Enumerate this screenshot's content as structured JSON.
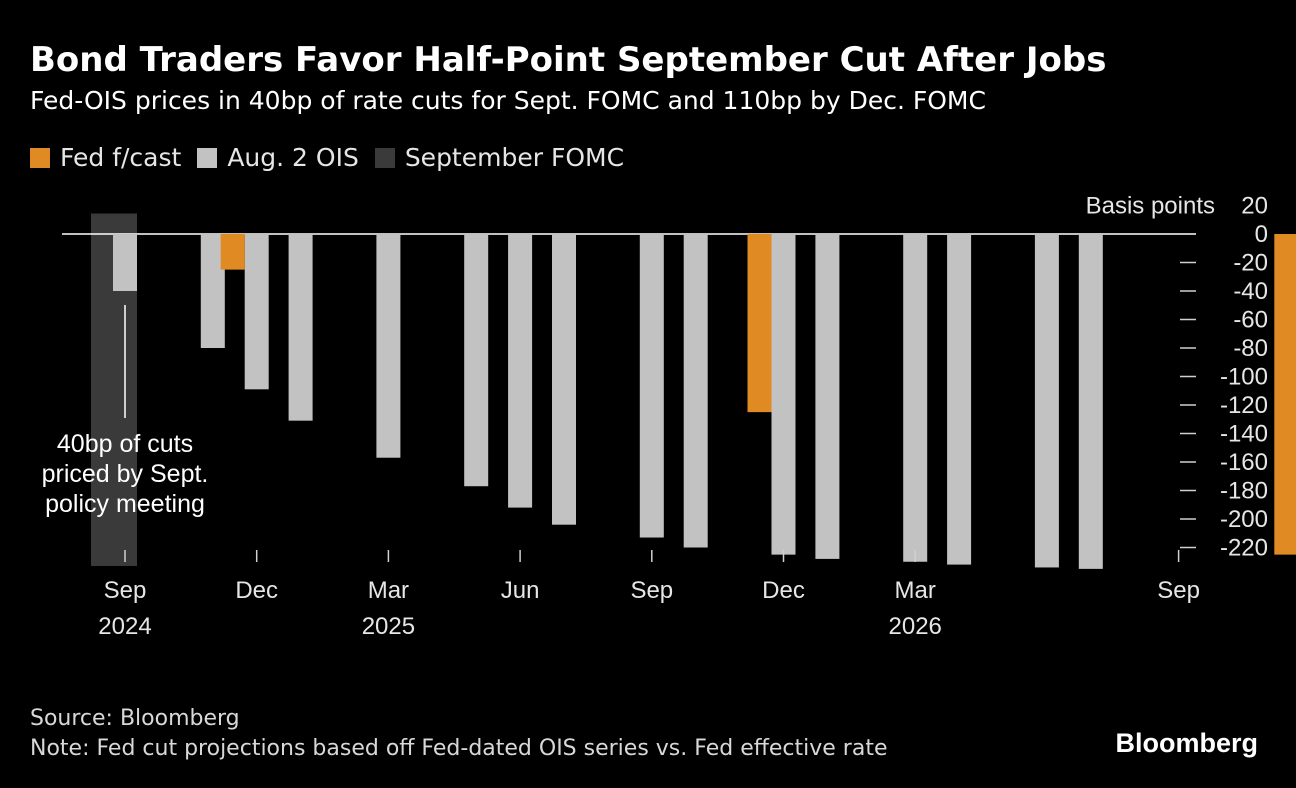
{
  "header": {
    "title": "Bond Traders Favor Half-Point September Cut After Jobs",
    "subtitle": "Fed-OIS prices in 40bp of rate cuts for Sept. FOMC and 110bp by Dec. FOMC"
  },
  "legend": [
    {
      "label": "Fed f/cast",
      "color": "#e08a24"
    },
    {
      "label": "Aug. 2 OIS",
      "color": "#c2c2c2"
    },
    {
      "label": "September FOMC",
      "color": "#3a3a3a"
    }
  ],
  "footer": {
    "source": "Source: Bloomberg",
    "note": "Note: Fed cut projections based off Fed-dated OIS series vs. Fed effective rate",
    "brand": "Bloomberg"
  },
  "chart_data": {
    "type": "bar",
    "yaxis_label": "Basis points",
    "y_ticks": [
      20,
      0,
      -20,
      -40,
      -60,
      -80,
      -100,
      -120,
      -140,
      -160,
      -180,
      -200,
      -220
    ],
    "ylim": [
      -240,
      20
    ],
    "x_ticks": [
      {
        "label": "Sep",
        "year": "2024",
        "date": "2024-09"
      },
      {
        "label": "Dec",
        "year": "",
        "date": "2024-12"
      },
      {
        "label": "Mar",
        "year": "2025",
        "date": "2025-03"
      },
      {
        "label": "Jun",
        "year": "",
        "date": "2025-06"
      },
      {
        "label": "Sep",
        "year": "",
        "date": "2025-09"
      },
      {
        "label": "Dec",
        "year": "",
        "date": "2025-12"
      },
      {
        "label": "Mar",
        "year": "2026",
        "date": "2026-03"
      },
      {
        "label": "Sep",
        "year": "",
        "date": "2026-09"
      }
    ],
    "series": [
      {
        "name": "Aug. 2 OIS",
        "color": "#c2c2c2",
        "points": [
          {
            "date": "2024-09",
            "value": -40
          },
          {
            "date": "2024-11",
            "value": -80
          },
          {
            "date": "2024-12",
            "value": -109
          },
          {
            "date": "2025-01",
            "value": -131
          },
          {
            "date": "2025-03",
            "value": -157
          },
          {
            "date": "2025-05",
            "value": -177
          },
          {
            "date": "2025-06",
            "value": -192
          },
          {
            "date": "2025-07",
            "value": -204
          },
          {
            "date": "2025-09",
            "value": -213
          },
          {
            "date": "2025-10",
            "value": -220
          },
          {
            "date": "2025-12",
            "value": -225
          },
          {
            "date": "2026-01",
            "value": -228
          },
          {
            "date": "2026-03",
            "value": -230
          },
          {
            "date": "2026-04",
            "value": -232
          },
          {
            "date": "2026-06",
            "value": -234
          },
          {
            "date": "2026-07",
            "value": -235
          }
        ]
      },
      {
        "name": "Fed f/cast",
        "color": "#e08a24",
        "points": [
          {
            "date": "2024-12",
            "value": -25
          },
          {
            "date": "2025-12",
            "value": -125
          },
          {
            "date": "2026-12",
            "value": -225
          }
        ]
      }
    ],
    "highlight": {
      "name": "September FOMC",
      "date": "2024-09",
      "color": "#3a3a3a"
    },
    "annotation": {
      "lines": [
        "40bp of cuts",
        "priced by Sept.",
        "policy meeting"
      ]
    }
  }
}
